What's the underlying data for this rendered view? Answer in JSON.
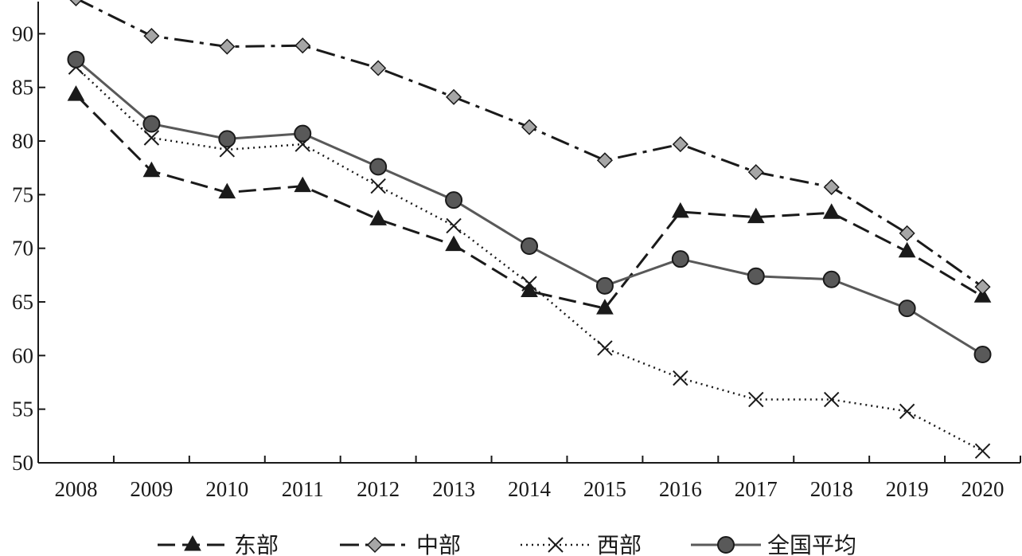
{
  "chart_data": {
    "type": "line",
    "title": "",
    "xlabel": "",
    "ylabel": "",
    "categories": [
      "2008",
      "2009",
      "2010",
      "2011",
      "2012",
      "2013",
      "2014",
      "2015",
      "2016",
      "2017",
      "2018",
      "2019",
      "2020"
    ],
    "ylim": [
      50,
      93
    ],
    "yticks": [
      50,
      55,
      60,
      65,
      70,
      75,
      80,
      85,
      90
    ],
    "grid": false,
    "legend_position": "bottom",
    "series": [
      {
        "name": "东部",
        "marker": "triangle",
        "line_style": "dashed",
        "marker_color": "#1a1a1a",
        "values": [
          84.3,
          77.2,
          75.2,
          75.8,
          72.7,
          70.3,
          66.0,
          64.4,
          73.4,
          72.9,
          73.3,
          69.7,
          65.5
        ]
      },
      {
        "name": "中部",
        "marker": "diamond",
        "line_style": "dash-dot",
        "marker_color": "#a6a6a6",
        "values": [
          93.3,
          89.8,
          88.8,
          88.9,
          86.8,
          84.1,
          81.3,
          78.2,
          79.7,
          77.1,
          75.7,
          71.4,
          66.4
        ]
      },
      {
        "name": "西部",
        "marker": "x",
        "line_style": "dotted",
        "marker_color": "#1a1a1a",
        "values": [
          86.9,
          80.3,
          79.2,
          79.7,
          75.8,
          72.1,
          66.7,
          60.7,
          57.9,
          55.9,
          55.9,
          54.8,
          51.1
        ]
      },
      {
        "name": "全国平均",
        "marker": "circle",
        "line_style": "solid",
        "marker_color": "#595959",
        "values": [
          87.6,
          81.6,
          80.2,
          80.7,
          77.6,
          74.5,
          70.2,
          66.5,
          69.0,
          67.4,
          67.1,
          64.4,
          60.1
        ]
      }
    ]
  }
}
